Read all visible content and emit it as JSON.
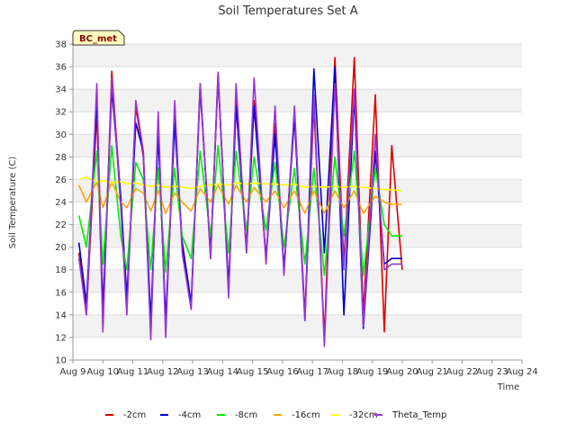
{
  "chart_data": {
    "type": "line",
    "title": "Soil Temperatures Set A",
    "xlabel": "Time",
    "ylabel": "Soil Temperature (C)",
    "site_label": "BC_met",
    "xlim": [
      0,
      15
    ],
    "ylim": [
      10,
      38
    ],
    "x_ticks": [
      {
        "value": 0,
        "label": "Aug 9"
      },
      {
        "value": 1,
        "label": "Aug 10"
      },
      {
        "value": 2,
        "label": "Aug 11"
      },
      {
        "value": 3,
        "label": "Aug 12"
      },
      {
        "value": 4,
        "label": "Aug 13"
      },
      {
        "value": 5,
        "label": "Aug 14"
      },
      {
        "value": 6,
        "label": "Aug 15"
      },
      {
        "value": 7,
        "label": "Aug 16"
      },
      {
        "value": 8,
        "label": "Aug 17"
      },
      {
        "value": 9,
        "label": "Aug 18"
      },
      {
        "value": 10,
        "label": "Aug 19"
      },
      {
        "value": 11,
        "label": "Aug 20"
      },
      {
        "value": 12,
        "label": "Aug 21"
      },
      {
        "value": 13,
        "label": "Aug 22"
      },
      {
        "value": 14,
        "label": "Aug 23"
      },
      {
        "value": 15,
        "label": "Aug 24"
      }
    ],
    "y_ticks": [
      10,
      12,
      14,
      16,
      18,
      20,
      22,
      24,
      26,
      28,
      30,
      32,
      34,
      36,
      38
    ],
    "grid": true,
    "legend_position": "bottom",
    "series": [
      {
        "name": "-2cm",
        "color": "#dd0000",
        "x": [
          0.2,
          0.45,
          0.8,
          1.0,
          1.3,
          1.6,
          1.8,
          2.1,
          2.35,
          2.6,
          2.85,
          3.1,
          3.4,
          3.65,
          3.95,
          4.25,
          4.6,
          4.85,
          5.2,
          5.45,
          5.8,
          6.05,
          6.45,
          6.75,
          7.05,
          7.4,
          7.75,
          8.05,
          8.4,
          8.75,
          9.05,
          9.4,
          9.7,
          10.1,
          10.4,
          10.65,
          11.0,
          11.45,
          11.65,
          12.1,
          12.3,
          12.75,
          13.0,
          13.3,
          13.55,
          13.7,
          14.1
        ],
        "y": [
          19.5,
          14.0,
          32.0,
          13.0,
          35.6,
          24.0,
          14.5,
          32.5,
          28.0,
          12.5,
          31.0,
          13.0,
          31.5,
          20.0,
          14.5,
          34.5,
          19.0,
          35.5,
          16.0,
          33.0,
          19.5,
          33.0,
          19.0,
          31.0,
          18.0,
          32.0,
          14.0,
          32.5,
          12.0,
          36.8,
          18.5,
          36.8,
          14.0,
          33.5,
          12.5,
          29.0,
          18.0,
          null,
          null,
          null,
          null,
          null,
          null,
          null,
          null,
          null,
          null
        ]
      },
      {
        "name": "-4cm",
        "color": "#0000cc",
        "x": [
          0.2,
          0.45,
          0.8,
          1.0,
          1.3,
          1.6,
          1.8,
          2.1,
          2.35,
          2.6,
          2.85,
          3.1,
          3.4,
          3.65,
          3.95,
          4.25,
          4.6,
          4.85,
          5.2,
          5.45,
          5.8,
          6.05,
          6.45,
          6.75,
          7.05,
          7.4,
          7.75,
          8.05,
          8.4,
          8.75,
          9.05,
          9.4,
          9.7,
          10.1,
          10.4,
          10.65,
          11.0
        ],
        "y": [
          20.4,
          15.0,
          33.0,
          14.5,
          34.0,
          24.5,
          15.5,
          31.0,
          28.5,
          13.5,
          30.0,
          13.5,
          31.0,
          20.5,
          15.0,
          34.0,
          19.5,
          35.0,
          16.5,
          32.5,
          20.0,
          32.5,
          19.0,
          30.0,
          18.0,
          31.5,
          13.5,
          35.8,
          19.5,
          36.0,
          14.0,
          33.5,
          12.8,
          28.5,
          18.5,
          19.0,
          19.0
        ]
      },
      {
        "name": "-8cm",
        "color": "#00ee00",
        "x": [
          0.2,
          0.45,
          0.8,
          1.0,
          1.3,
          1.6,
          1.8,
          2.1,
          2.35,
          2.6,
          2.85,
          3.1,
          3.4,
          3.65,
          3.95,
          4.25,
          4.6,
          4.85,
          5.2,
          5.45,
          5.8,
          6.05,
          6.45,
          6.75,
          7.05,
          7.4,
          7.75,
          8.05,
          8.4,
          8.75,
          9.05,
          9.4,
          9.7,
          10.1,
          10.4,
          10.65,
          11.0
        ],
        "y": [
          22.8,
          20.0,
          28.5,
          18.5,
          29.0,
          21.0,
          18.0,
          27.5,
          26.0,
          18.0,
          27.0,
          17.8,
          27.0,
          21.0,
          19.0,
          28.5,
          21.0,
          29.0,
          19.5,
          28.5,
          21.5,
          28.0,
          21.5,
          27.5,
          20.0,
          27.0,
          18.5,
          27.0,
          17.5,
          28.0,
          21.0,
          28.5,
          17.5,
          27.0,
          22.0,
          21.0,
          21.0
        ]
      },
      {
        "name": "-16cm",
        "color": "#ffa500",
        "x": [
          0.2,
          0.45,
          0.8,
          1.0,
          1.3,
          1.6,
          1.8,
          2.1,
          2.35,
          2.6,
          2.85,
          3.1,
          3.4,
          3.65,
          3.95,
          4.25,
          4.6,
          4.85,
          5.2,
          5.45,
          5.8,
          6.05,
          6.45,
          6.75,
          7.05,
          7.4,
          7.75,
          8.05,
          8.4,
          8.75,
          9.05,
          9.4,
          9.7,
          10.1,
          10.4,
          10.65,
          11.0
        ],
        "y": [
          25.5,
          24.0,
          25.8,
          23.5,
          25.8,
          24.0,
          23.5,
          25.2,
          24.8,
          23.2,
          25.0,
          23.0,
          24.8,
          24.0,
          23.2,
          25.2,
          24.0,
          25.5,
          23.8,
          25.5,
          24.0,
          25.3,
          24.0,
          25.0,
          23.5,
          25.0,
          23.0,
          25.0,
          23.0,
          25.0,
          23.5,
          25.0,
          23.0,
          24.5,
          24.0,
          23.8,
          23.8
        ]
      },
      {
        "name": "-32cm",
        "color": "#ffff00",
        "x": [
          0.2,
          0.45,
          0.8,
          1.0,
          1.3,
          1.6,
          1.8,
          2.1,
          2.35,
          2.6,
          2.85,
          3.1,
          3.4,
          3.65,
          3.95,
          4.25,
          4.6,
          4.85,
          5.2,
          5.45,
          5.8,
          6.05,
          6.45,
          6.75,
          7.05,
          7.4,
          7.75,
          8.05,
          8.4,
          8.75,
          9.05,
          9.4,
          9.7,
          10.1,
          10.4,
          10.65,
          11.0
        ],
        "y": [
          26.0,
          26.2,
          25.8,
          25.9,
          25.7,
          25.8,
          25.6,
          25.7,
          25.5,
          25.4,
          25.5,
          25.3,
          25.4,
          25.3,
          25.2,
          25.4,
          25.5,
          25.6,
          25.5,
          25.7,
          25.6,
          25.7,
          25.6,
          25.6,
          25.5,
          25.6,
          25.3,
          25.4,
          25.3,
          25.4,
          25.3,
          25.4,
          25.3,
          25.2,
          25.1,
          25.1,
          25.0
        ]
      },
      {
        "name": "Theta_Temp",
        "color": "#9933dd",
        "x": [
          0.2,
          0.45,
          0.8,
          1.0,
          1.3,
          1.6,
          1.8,
          2.1,
          2.35,
          2.6,
          2.85,
          3.1,
          3.4,
          3.65,
          3.95,
          4.25,
          4.6,
          4.85,
          5.2,
          5.45,
          5.8,
          6.05,
          6.45,
          6.75,
          7.05,
          7.4,
          7.75,
          8.05,
          8.4,
          8.75,
          9.05,
          9.4,
          9.7,
          10.1,
          10.4,
          10.65,
          11.0
        ],
        "y": [
          19.0,
          14.0,
          34.5,
          12.5,
          35.0,
          23.5,
          14.0,
          33.0,
          28.5,
          11.8,
          32.0,
          12.0,
          33.0,
          19.5,
          14.5,
          34.5,
          19.0,
          35.5,
          15.5,
          34.5,
          19.5,
          35.0,
          18.5,
          32.5,
          17.5,
          32.5,
          13.5,
          33.5,
          11.2,
          34.5,
          18.0,
          34.0,
          13.0,
          30.0,
          18.0,
          18.5,
          18.5
        ]
      }
    ]
  }
}
